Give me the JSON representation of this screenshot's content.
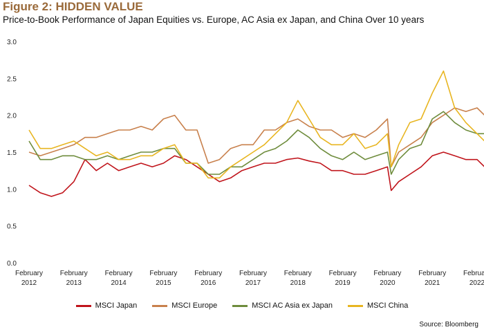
{
  "header": {
    "title": "Figure 2: HIDDEN VALUE",
    "subtitle": "Price-to-Book Performance of Japan Equities vs. Europe, AC Asia ex Japan, and China Over 10 years"
  },
  "source": "Source: Bloomberg",
  "chart_data": {
    "type": "line",
    "title": "",
    "xlabel": "",
    "ylabel": "",
    "ylim": [
      0,
      3
    ],
    "yticks": [
      "0.0",
      "0.5",
      "1.0",
      "1.5",
      "2.0",
      "2.5",
      "3.0"
    ],
    "xticks": [
      {
        "date": "2012-02",
        "line1": "February",
        "line2": "2012"
      },
      {
        "date": "2013-02",
        "line1": "February",
        "line2": "2013"
      },
      {
        "date": "2014-02",
        "line1": "February",
        "line2": "2014"
      },
      {
        "date": "2015-02",
        "line1": "February",
        "line2": "2015"
      },
      {
        "date": "2016-02",
        "line1": "February",
        "line2": "2016"
      },
      {
        "date": "2017-02",
        "line1": "February",
        "line2": "2017"
      },
      {
        "date": "2018-02",
        "line1": "February",
        "line2": "2018"
      },
      {
        "date": "2019-02",
        "line1": "February",
        "line2": "2019"
      },
      {
        "date": "2020-02",
        "line1": "February",
        "line2": "2020"
      },
      {
        "date": "2021-02",
        "line1": "February",
        "line2": "2021"
      },
      {
        "date": "2022-02",
        "line1": "February",
        "line2": "2022"
      }
    ],
    "x": [
      "2012-02",
      "2012-05",
      "2012-08",
      "2012-11",
      "2013-02",
      "2013-05",
      "2013-08",
      "2013-11",
      "2014-02",
      "2014-05",
      "2014-08",
      "2014-11",
      "2015-02",
      "2015-05",
      "2015-08",
      "2015-11",
      "2016-02",
      "2016-05",
      "2016-08",
      "2016-11",
      "2017-02",
      "2017-05",
      "2017-08",
      "2017-11",
      "2018-02",
      "2018-05",
      "2018-08",
      "2018-11",
      "2019-02",
      "2019-05",
      "2019-08",
      "2019-11",
      "2020-02",
      "2020-03",
      "2020-05",
      "2020-08",
      "2020-11",
      "2021-02",
      "2021-05",
      "2021-08",
      "2021-11",
      "2022-02",
      "2022-04"
    ],
    "grid": false,
    "legend_position": "bottom",
    "series": [
      {
        "name": "MSCI Japan",
        "color": "#c0141b",
        "values": [
          1.05,
          0.95,
          0.9,
          0.95,
          1.1,
          1.4,
          1.25,
          1.35,
          1.25,
          1.3,
          1.35,
          1.3,
          1.35,
          1.45,
          1.4,
          1.3,
          1.2,
          1.1,
          1.15,
          1.25,
          1.3,
          1.35,
          1.35,
          1.4,
          1.42,
          1.38,
          1.35,
          1.25,
          1.25,
          1.2,
          1.2,
          1.25,
          1.3,
          0.98,
          1.1,
          1.2,
          1.3,
          1.45,
          1.5,
          1.45,
          1.4,
          1.4,
          1.3
        ]
      },
      {
        "name": "MSCI Europe",
        "color": "#c8804c",
        "values": [
          1.5,
          1.45,
          1.5,
          1.55,
          1.6,
          1.7,
          1.7,
          1.75,
          1.8,
          1.8,
          1.85,
          1.8,
          1.95,
          2.0,
          1.8,
          1.8,
          1.35,
          1.4,
          1.55,
          1.6,
          1.6,
          1.8,
          1.8,
          1.9,
          1.95,
          1.85,
          1.8,
          1.8,
          1.7,
          1.75,
          1.7,
          1.8,
          1.95,
          1.3,
          1.5,
          1.6,
          1.7,
          1.9,
          2.0,
          2.1,
          2.05,
          2.1,
          2.0
        ]
      },
      {
        "name": "MSCI AC Asia ex Japan",
        "color": "#6e8c3c",
        "values": [
          1.65,
          1.4,
          1.4,
          1.45,
          1.45,
          1.4,
          1.4,
          1.45,
          1.4,
          1.45,
          1.5,
          1.5,
          1.55,
          1.55,
          1.35,
          1.35,
          1.2,
          1.2,
          1.3,
          1.3,
          1.4,
          1.5,
          1.55,
          1.65,
          1.8,
          1.7,
          1.55,
          1.45,
          1.4,
          1.5,
          1.4,
          1.45,
          1.5,
          1.2,
          1.4,
          1.55,
          1.6,
          1.95,
          2.05,
          1.9,
          1.8,
          1.75,
          1.75
        ]
      },
      {
        "name": "MSCI China",
        "color": "#e8b520",
        "values": [
          1.8,
          1.55,
          1.55,
          1.6,
          1.65,
          1.55,
          1.45,
          1.5,
          1.4,
          1.4,
          1.45,
          1.45,
          1.55,
          1.6,
          1.35,
          1.35,
          1.15,
          1.15,
          1.3,
          1.4,
          1.5,
          1.6,
          1.75,
          1.9,
          2.2,
          1.95,
          1.7,
          1.6,
          1.6,
          1.75,
          1.55,
          1.6,
          1.75,
          1.3,
          1.6,
          1.9,
          1.95,
          2.3,
          2.6,
          2.1,
          1.9,
          1.75,
          1.65
        ]
      }
    ]
  }
}
